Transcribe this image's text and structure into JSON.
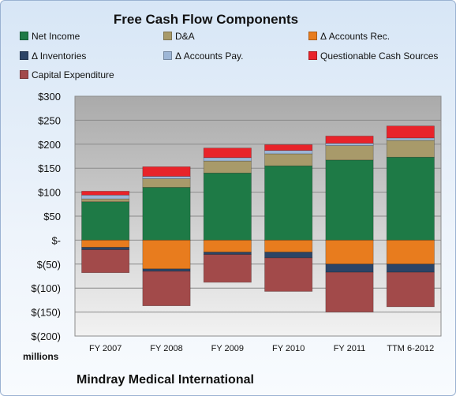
{
  "chart_data": {
    "type": "bar",
    "stacked": true,
    "title": "Free Cash Flow Components",
    "unit_label": "millions",
    "footer": "Mindray Medical International",
    "categories": [
      "FY 2007",
      "FY 2008",
      "FY 2009",
      "FY 2010",
      "FY 2011",
      "TTM 6-2012"
    ],
    "y_ticks": [
      "$300",
      "$250",
      "$200",
      "$150",
      "$100",
      "$50",
      "$-",
      "$(50)",
      "$(100)",
      "$(150)",
      "$(200)"
    ],
    "ylim": [
      -200,
      300
    ],
    "grid": true,
    "legend_position": "top",
    "series": [
      {
        "name": "Net Income",
        "color": "#1e7a46",
        "values": [
          80,
          110,
          140,
          155,
          167,
          173
        ]
      },
      {
        "name": "D&A",
        "color": "#a89a6a",
        "values": [
          6,
          18,
          25,
          25,
          30,
          35
        ]
      },
      {
        "name": "Δ Accounts Rec.",
        "color": "#e87c1e",
        "values": [
          -15,
          -60,
          -25,
          -25,
          -50,
          -50
        ]
      },
      {
        "name": "Δ Inventories",
        "color": "#2b4466",
        "values": [
          -5,
          -5,
          -5,
          -12,
          -17,
          -17
        ]
      },
      {
        "name": "Δ Accounts Pay.",
        "color": "#9db6d6",
        "values": [
          8,
          5,
          7,
          7,
          5,
          5
        ]
      },
      {
        "name": "Questionable Cash Sources",
        "color": "#e8232a",
        "values": [
          8,
          20,
          20,
          12,
          15,
          25
        ]
      },
      {
        "name": "Capital Expenditure",
        "color": "#a24a4a",
        "values": [
          -48,
          -72,
          -58,
          -70,
          -83,
          -72
        ]
      }
    ]
  }
}
